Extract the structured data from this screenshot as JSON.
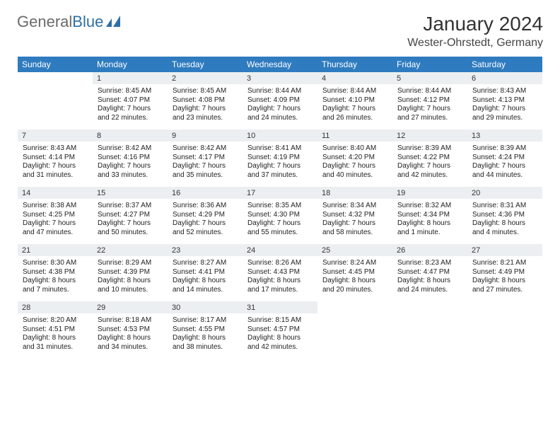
{
  "brand": {
    "part1": "General",
    "part2": "Blue"
  },
  "title": "January 2024",
  "location": "Wester-Ohrstedt, Germany",
  "colors": {
    "header_bg": "#2f7bbf",
    "daynum_bg": "#eceff1",
    "daynum_border": "#2f7bbf",
    "cell_bg": "#ffffff"
  },
  "day_names": [
    "Sunday",
    "Monday",
    "Tuesday",
    "Wednesday",
    "Thursday",
    "Friday",
    "Saturday"
  ],
  "weeks": [
    [
      {
        "n": "",
        "sr": "",
        "ss": "",
        "d1": "",
        "d2": ""
      },
      {
        "n": "1",
        "sr": "Sunrise: 8:45 AM",
        "ss": "Sunset: 4:07 PM",
        "d1": "Daylight: 7 hours",
        "d2": "and 22 minutes."
      },
      {
        "n": "2",
        "sr": "Sunrise: 8:45 AM",
        "ss": "Sunset: 4:08 PM",
        "d1": "Daylight: 7 hours",
        "d2": "and 23 minutes."
      },
      {
        "n": "3",
        "sr": "Sunrise: 8:44 AM",
        "ss": "Sunset: 4:09 PM",
        "d1": "Daylight: 7 hours",
        "d2": "and 24 minutes."
      },
      {
        "n": "4",
        "sr": "Sunrise: 8:44 AM",
        "ss": "Sunset: 4:10 PM",
        "d1": "Daylight: 7 hours",
        "d2": "and 26 minutes."
      },
      {
        "n": "5",
        "sr": "Sunrise: 8:44 AM",
        "ss": "Sunset: 4:12 PM",
        "d1": "Daylight: 7 hours",
        "d2": "and 27 minutes."
      },
      {
        "n": "6",
        "sr": "Sunrise: 8:43 AM",
        "ss": "Sunset: 4:13 PM",
        "d1": "Daylight: 7 hours",
        "d2": "and 29 minutes."
      }
    ],
    [
      {
        "n": "7",
        "sr": "Sunrise: 8:43 AM",
        "ss": "Sunset: 4:14 PM",
        "d1": "Daylight: 7 hours",
        "d2": "and 31 minutes."
      },
      {
        "n": "8",
        "sr": "Sunrise: 8:42 AM",
        "ss": "Sunset: 4:16 PM",
        "d1": "Daylight: 7 hours",
        "d2": "and 33 minutes."
      },
      {
        "n": "9",
        "sr": "Sunrise: 8:42 AM",
        "ss": "Sunset: 4:17 PM",
        "d1": "Daylight: 7 hours",
        "d2": "and 35 minutes."
      },
      {
        "n": "10",
        "sr": "Sunrise: 8:41 AM",
        "ss": "Sunset: 4:19 PM",
        "d1": "Daylight: 7 hours",
        "d2": "and 37 minutes."
      },
      {
        "n": "11",
        "sr": "Sunrise: 8:40 AM",
        "ss": "Sunset: 4:20 PM",
        "d1": "Daylight: 7 hours",
        "d2": "and 40 minutes."
      },
      {
        "n": "12",
        "sr": "Sunrise: 8:39 AM",
        "ss": "Sunset: 4:22 PM",
        "d1": "Daylight: 7 hours",
        "d2": "and 42 minutes."
      },
      {
        "n": "13",
        "sr": "Sunrise: 8:39 AM",
        "ss": "Sunset: 4:24 PM",
        "d1": "Daylight: 7 hours",
        "d2": "and 44 minutes."
      }
    ],
    [
      {
        "n": "14",
        "sr": "Sunrise: 8:38 AM",
        "ss": "Sunset: 4:25 PM",
        "d1": "Daylight: 7 hours",
        "d2": "and 47 minutes."
      },
      {
        "n": "15",
        "sr": "Sunrise: 8:37 AM",
        "ss": "Sunset: 4:27 PM",
        "d1": "Daylight: 7 hours",
        "d2": "and 50 minutes."
      },
      {
        "n": "16",
        "sr": "Sunrise: 8:36 AM",
        "ss": "Sunset: 4:29 PM",
        "d1": "Daylight: 7 hours",
        "d2": "and 52 minutes."
      },
      {
        "n": "17",
        "sr": "Sunrise: 8:35 AM",
        "ss": "Sunset: 4:30 PM",
        "d1": "Daylight: 7 hours",
        "d2": "and 55 minutes."
      },
      {
        "n": "18",
        "sr": "Sunrise: 8:34 AM",
        "ss": "Sunset: 4:32 PM",
        "d1": "Daylight: 7 hours",
        "d2": "and 58 minutes."
      },
      {
        "n": "19",
        "sr": "Sunrise: 8:32 AM",
        "ss": "Sunset: 4:34 PM",
        "d1": "Daylight: 8 hours",
        "d2": "and 1 minute."
      },
      {
        "n": "20",
        "sr": "Sunrise: 8:31 AM",
        "ss": "Sunset: 4:36 PM",
        "d1": "Daylight: 8 hours",
        "d2": "and 4 minutes."
      }
    ],
    [
      {
        "n": "21",
        "sr": "Sunrise: 8:30 AM",
        "ss": "Sunset: 4:38 PM",
        "d1": "Daylight: 8 hours",
        "d2": "and 7 minutes."
      },
      {
        "n": "22",
        "sr": "Sunrise: 8:29 AM",
        "ss": "Sunset: 4:39 PM",
        "d1": "Daylight: 8 hours",
        "d2": "and 10 minutes."
      },
      {
        "n": "23",
        "sr": "Sunrise: 8:27 AM",
        "ss": "Sunset: 4:41 PM",
        "d1": "Daylight: 8 hours",
        "d2": "and 14 minutes."
      },
      {
        "n": "24",
        "sr": "Sunrise: 8:26 AM",
        "ss": "Sunset: 4:43 PM",
        "d1": "Daylight: 8 hours",
        "d2": "and 17 minutes."
      },
      {
        "n": "25",
        "sr": "Sunrise: 8:24 AM",
        "ss": "Sunset: 4:45 PM",
        "d1": "Daylight: 8 hours",
        "d2": "and 20 minutes."
      },
      {
        "n": "26",
        "sr": "Sunrise: 8:23 AM",
        "ss": "Sunset: 4:47 PM",
        "d1": "Daylight: 8 hours",
        "d2": "and 24 minutes."
      },
      {
        "n": "27",
        "sr": "Sunrise: 8:21 AM",
        "ss": "Sunset: 4:49 PM",
        "d1": "Daylight: 8 hours",
        "d2": "and 27 minutes."
      }
    ],
    [
      {
        "n": "28",
        "sr": "Sunrise: 8:20 AM",
        "ss": "Sunset: 4:51 PM",
        "d1": "Daylight: 8 hours",
        "d2": "and 31 minutes."
      },
      {
        "n": "29",
        "sr": "Sunrise: 8:18 AM",
        "ss": "Sunset: 4:53 PM",
        "d1": "Daylight: 8 hours",
        "d2": "and 34 minutes."
      },
      {
        "n": "30",
        "sr": "Sunrise: 8:17 AM",
        "ss": "Sunset: 4:55 PM",
        "d1": "Daylight: 8 hours",
        "d2": "and 38 minutes."
      },
      {
        "n": "31",
        "sr": "Sunrise: 8:15 AM",
        "ss": "Sunset: 4:57 PM",
        "d1": "Daylight: 8 hours",
        "d2": "and 42 minutes."
      },
      {
        "n": "",
        "sr": "",
        "ss": "",
        "d1": "",
        "d2": ""
      },
      {
        "n": "",
        "sr": "",
        "ss": "",
        "d1": "",
        "d2": ""
      },
      {
        "n": "",
        "sr": "",
        "ss": "",
        "d1": "",
        "d2": ""
      }
    ]
  ]
}
